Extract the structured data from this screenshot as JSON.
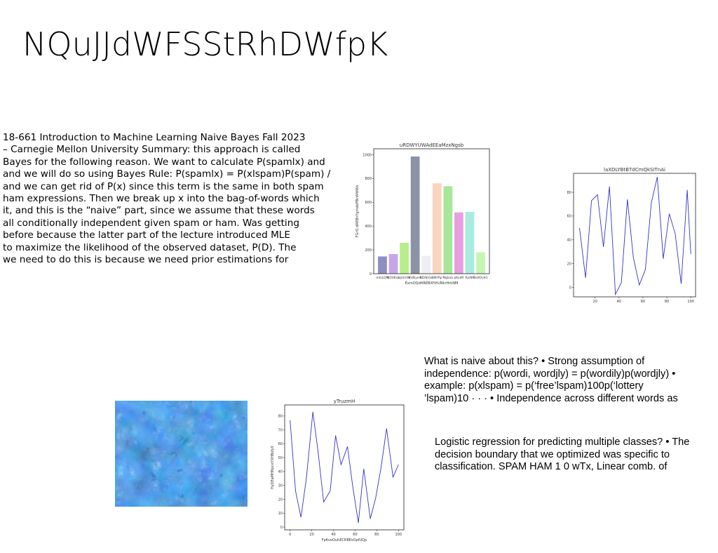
{
  "slide": {
    "title": "NQuJJdWFSStRhDWfpK",
    "paragraph_left": "18-661 Introduction to Machine Learning Naive Bayes Fall 2023\n– Carnegie Mellon University Summary: this approach is called\nBayes for the following reason. We want to calculate P(spamlx) and\nand we will do so using Bayes Rule: P(spamlx) = P(xlspam)P(spam) /\nand we can get rid of P(x) since this term is the same in both spam\nham expressions. Then we break up x into the bag-of-words which\nit, and this is the “naive” part, since we assume that these words\nall conditionally independent given spam or ham. Was getting\nbefore because the latter part of the lecture introduced MLE\nto maximize the likelihood of the observed dataset, P(D). The\nwe need to do this is because we need prior estimations for",
    "paragraph_right_top": "What is naive about this? • Strong assumption of\nindependence: p(wordi, wordjly) = p(wordily)p(wordjly) •\nexample: p(xlspam) = p(‘free’lspam)100p(‘lottery\n’lspam)10 · · · • Independence across different words as",
    "paragraph_right_bottom": "Logistic regression for predicting multiple classes? • The\ndecision boundary that we optimized was specific to\nclassification. SPAM HAM 1 0 wTx, Linear comb. of"
  },
  "chart_data": [
    {
      "type": "bar",
      "title": "uRDWYUWAdEEaMzxNgsb",
      "xlabel": "ExmOQdHREBXfVtUNkrHrkNM",
      "ylabel": "FGrQ dAEBhYgmdoPBcWWWs",
      "categories": [
        "mtsLQM",
        "NOdKxu",
        "bjUmXN",
        "mdEyem",
        "BDAEGa",
        "BNYRp",
        "Mglozz",
        "pKxdR",
        "RjvNR",
        "BeXOvhG"
      ],
      "values": [
        145,
        165,
        260,
        985,
        150,
        760,
        735,
        515,
        520,
        180
      ],
      "colors": [
        "#8c8fc0",
        "#c7a6e8",
        "#b8ee8a",
        "#8a94a6",
        "#eceef2",
        "#fbd4c0",
        "#a8e69a",
        "#e6a0e0",
        "#a8ece0",
        "#c6f5b0"
      ],
      "ylim": [
        0,
        1050
      ],
      "yticks": [
        0,
        200,
        400,
        600,
        800,
        1000
      ]
    },
    {
      "type": "line",
      "title": "laXDLYBtBTdCmQkSITnAi",
      "xlabel": "",
      "ylabel": "",
      "x": [
        7,
        12,
        17,
        22,
        27,
        32,
        37,
        42,
        47,
        52,
        57,
        62,
        67,
        72,
        77,
        82,
        87,
        92,
        97,
        100
      ],
      "y": [
        50,
        8,
        73,
        78,
        34,
        85,
        -6,
        4,
        74,
        25,
        2,
        15,
        71,
        93,
        24,
        62,
        45,
        3,
        82,
        28
      ],
      "color": "#3333cc",
      "xlim": [
        2,
        104
      ],
      "ylim": [
        -8,
        96
      ],
      "xticks": [
        20,
        40,
        60,
        80,
        100
      ],
      "yticks": [
        0,
        20,
        40,
        60,
        80
      ]
    },
    {
      "type": "line",
      "title": "yTruzmH",
      "xlabel": "FpKvoOuhECRBEsOpfUQp",
      "ylabel": "HyDEaMHNpcoYXHBsfyX",
      "x": [
        0,
        5,
        10,
        15,
        21,
        26,
        31,
        37,
        42,
        47,
        53,
        58,
        63,
        68,
        74,
        79,
        84,
        89,
        95,
        100
      ],
      "y": [
        77,
        26,
        7,
        35,
        83,
        53,
        18,
        26,
        66,
        45,
        58,
        28,
        3,
        42,
        6,
        21,
        43,
        71,
        36,
        45
      ],
      "color": "#3333cc",
      "xlim": [
        -5,
        105
      ],
      "ylim": [
        -2,
        88
      ],
      "xticks": [
        0,
        20,
        40,
        60,
        80,
        100
      ],
      "yticks": [
        0,
        10,
        20,
        30,
        40,
        50,
        60,
        70,
        80
      ]
    }
  ]
}
